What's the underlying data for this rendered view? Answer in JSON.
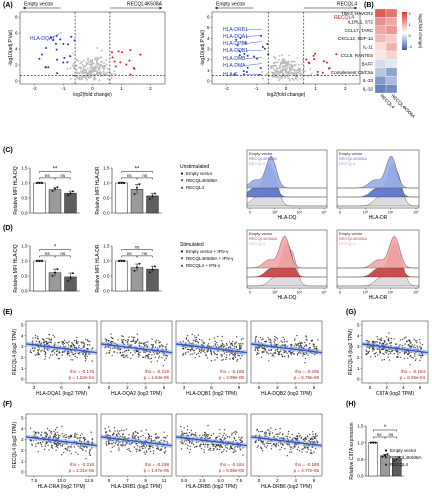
{
  "figure": {
    "panel_labels": [
      "(A)",
      "(B)",
      "(C)",
      "(D)",
      "(E)",
      "(F)",
      "(G)",
      "(H)"
    ]
  },
  "volcano": {
    "ylabel": "-log10(adj.P.Val)",
    "xlabel": "log2(fold change)",
    "plots": [
      {
        "left_label": "Empty vector",
        "right_label": "RECQL4K508A",
        "genes": [
          "HLA-DQA1"
        ],
        "xticks": [
          "-2",
          "-1",
          "0",
          "1",
          "2"
        ],
        "yticks": [
          "0",
          "2",
          "4",
          "6",
          "8"
        ]
      },
      {
        "left_label": "Empty vector",
        "right_label": "RECQL4",
        "genes": [
          "RECQL4",
          "HLA-DRB1",
          "HLA-DQA1",
          "HLA-DPB1",
          "HLA-DQB1",
          "HLA-DMB",
          "HLA-DMA",
          "HLA-E"
        ],
        "xticks": [
          "-2",
          "-1",
          "0",
          "1",
          "2"
        ],
        "yticks": [
          "0",
          "1",
          "2",
          "3",
          "4",
          "5",
          "6"
        ]
      }
    ],
    "colors": {
      "down": "#2038c8",
      "up": "#d42020",
      "ns": "#b8b8b8"
    }
  },
  "heatmap": {
    "rows": [
      "TIM-3, HAVCR2",
      "IL1RL1, ST2",
      "CCL17, TARC",
      "CXCL12, SDF-1α",
      "IL-11",
      "CCL5, RANTES",
      "BAFF",
      "Complement C5/C5a",
      "IL-33",
      "IL-32"
    ],
    "columns": [
      "RECQL4",
      "RECQL4K508A"
    ],
    "legend_title": "log2(fold change)",
    "legend_ticks": [
      "2",
      "1",
      "0",
      "-1"
    ],
    "colors": {
      "high": "#d63a2e",
      "mid": "#ffffff",
      "low": "#3a5ea8"
    }
  },
  "panel_c": {
    "title": "Unstimulated",
    "legend": [
      "Empty vector",
      "RECQL4K508A",
      "RECQL4"
    ],
    "ylabels": [
      "Relative MFI HLA-DQ",
      "Relative MFI HLA-DR"
    ],
    "significance": [
      "ns",
      "ns",
      "**",
      "ns",
      "ns",
      "**"
    ]
  },
  "panel_d": {
    "title": "Stimulated",
    "legend": [
      "Empty vector + IFN-γ",
      "RECQL4K508A + IFN-γ",
      "RECQL4 + IFN-γ"
    ],
    "ylabels": [
      "Relative MFI HLA-DQ",
      "Relative MFI HLA-DR"
    ],
    "significance": [
      "ns",
      "ns",
      "*",
      "ns",
      "ns",
      "ns"
    ]
  },
  "flow": {
    "labels_unstim": [
      "Empty vector",
      "RECQL4K508A",
      "RECQL4"
    ],
    "labels_stim": [
      "Empty vector",
      "RECQL4K508A",
      "RECQL4"
    ],
    "xlabels": [
      "HLA-DQ",
      "HLA-DR"
    ],
    "xticks": [
      "0",
      "10³",
      "10⁴",
      "10⁵"
    ]
  },
  "correlation": {
    "ylabel": "RECQL4 (log2 TPM)",
    "yticks": [
      "5",
      "4",
      "3",
      "2",
      "1",
      "0"
    ],
    "panels": [
      {
        "xlabel": "HLA-DQA1 (log2 TPM)",
        "rho": "rho = -0.176",
        "p": "p = 1.52e-04",
        "xticks": [
          "3",
          "6",
          "9"
        ]
      },
      {
        "xlabel": "HLA-DQA2 (log2 TPM)",
        "rho": "rho = -0.219",
        "p": "p = 1.64e-06",
        "xticks": [
          "0",
          "2",
          "4",
          "6"
        ]
      },
      {
        "xlabel": "HLA-DQB1 (log2 TPM)",
        "rho": "rho = -0.188",
        "p": "p = 3.99e-05",
        "xticks": [
          "3",
          "6",
          "9"
        ]
      },
      {
        "xlabel": "HLA-DQB2 (log2 TPM)",
        "rho": "rho = -0.206",
        "p": "p = 6.78e-06",
        "xticks": [
          "0",
          "2",
          "4",
          "6"
        ]
      },
      {
        "xlabel": "CIITA (log2 TPM)",
        "rho": "rho = -0.154",
        "p": "p = 8.06e-04",
        "xticks": [
          "0",
          "2",
          "4",
          "6"
        ]
      },
      {
        "xlabel": "HLA-DRA (log2 TPM)",
        "rho": "rho = -0.218",
        "p": "p = 2.31e-06",
        "xticks": [
          "7.5",
          "10.0",
          "12.5"
        ]
      },
      {
        "xlabel": "HLA-DRB1 (log2 TPM)",
        "rho": "rho = -0.198",
        "p": "p = 1.47e-05",
        "xticks": [
          "5",
          "7",
          "9",
          "11"
        ]
      },
      {
        "xlabel": "HLA-DRB5 (log2 TPM)",
        "rho": "rho = -0.184",
        "p": "p = 5.96e-05",
        "xticks": [
          "0.0",
          "2.5",
          "5.0",
          "7.5"
        ]
      },
      {
        "xlabel": "HLA-DRB6 (log2 TPM)",
        "rho": "rho = -0.188",
        "p": "p = 4.77e-05",
        "xticks": [
          "0",
          "2",
          "4",
          "6"
        ]
      }
    ]
  },
  "panel_h": {
    "ylabel": "Relative CIITA expression",
    "legend": [
      "Empty vector",
      "RECQL4K508A",
      "RECQL4"
    ],
    "significance": [
      "ns",
      "ns",
      "*"
    ]
  },
  "chart_data": [
    {
      "type": "bar",
      "id": "C-HLA-DQ",
      "categories": [
        "Empty vector",
        "RECQL4K508A",
        "RECQL4"
      ],
      "values": [
        1.0,
        0.78,
        0.66
      ],
      "errors": [
        0.03,
        0.06,
        0.07
      ],
      "points": [
        [
          1.0,
          1.0,
          1.0
        ],
        [
          0.72,
          0.8,
          0.85
        ],
        [
          0.6,
          0.67,
          0.73
        ]
      ],
      "ylabel": "Relative MFI HLA-DQ",
      "ylim": [
        0,
        1.5
      ],
      "yticks": [
        0.0,
        0.5,
        1.0,
        1.5
      ]
    },
    {
      "type": "bar",
      "id": "C-HLA-DR",
      "categories": [
        "Empty vector",
        "RECQL4K508A",
        "RECQL4"
      ],
      "values": [
        1.0,
        0.79,
        0.57
      ],
      "errors": [
        0.03,
        0.16,
        0.08
      ],
      "points": [
        [
          1.0,
          1.0,
          1.0
        ],
        [
          0.62,
          0.83,
          0.95
        ],
        [
          0.48,
          0.57,
          0.66
        ]
      ],
      "ylabel": "Relative MFI HLA-DR",
      "ylim": [
        0,
        1.5
      ],
      "yticks": [
        0.0,
        0.5,
        1.0,
        1.5
      ]
    },
    {
      "type": "bar",
      "id": "D-HLA-DQ",
      "categories": [
        "Empty vector + IFN-γ",
        "RECQL4K508A + IFN-γ",
        "RECQL4 + IFN-γ"
      ],
      "values": [
        1.0,
        0.61,
        0.47
      ],
      "errors": [
        0.03,
        0.12,
        0.13
      ],
      "points": [
        [
          1.0,
          1.0,
          1.0
        ],
        [
          0.5,
          0.6,
          0.72
        ],
        [
          0.35,
          0.45,
          0.6
        ]
      ],
      "ylabel": "Relative MFI HLA-DQ",
      "ylim": [
        0,
        1.5
      ],
      "yticks": [
        0.0,
        0.5,
        1.0,
        1.5
      ]
    },
    {
      "type": "bar",
      "id": "D-HLA-DR",
      "categories": [
        "Empty vector + IFN-γ",
        "RECQL4K508A + IFN-γ",
        "RECQL4 + IFN-γ"
      ],
      "values": [
        1.0,
        0.78,
        0.73
      ],
      "errors": [
        0.03,
        0.12,
        0.1
      ],
      "points": [
        [
          1.0,
          1.0,
          1.0
        ],
        [
          0.66,
          0.78,
          0.9
        ],
        [
          0.63,
          0.73,
          0.83
        ]
      ],
      "ylabel": "Relative MFI HLA-DR",
      "ylim": [
        0,
        1.5
      ],
      "yticks": [
        0.0,
        0.5,
        1.0,
        1.5
      ]
    },
    {
      "type": "bar",
      "id": "H-CIITA",
      "categories": [
        "Empty vector",
        "RECQL4K508A",
        "RECQL4"
      ],
      "values": [
        1.0,
        0.61,
        0.52
      ],
      "errors": [
        0.02,
        0.04,
        0.05
      ],
      "points": [
        [
          1.0,
          1.0,
          1.0
        ],
        [
          0.57,
          0.61,
          0.65
        ],
        [
          0.47,
          0.52,
          0.57
        ]
      ],
      "ylabel": "Relative CIITA expression",
      "ylim": [
        0,
        1.5
      ],
      "yticks": [
        0.0,
        0.5,
        1.0,
        1.5
      ]
    },
    {
      "type": "heatmap",
      "id": "B",
      "rows": [
        "TIM-3, HAVCR2",
        "IL1RL1, ST2",
        "CCL17, TARC",
        "CXCL12, SDF-1α",
        "IL-11",
        "CCL5, RANTES",
        "BAFF",
        "Complement C5/C5a",
        "IL-33",
        "IL-32"
      ],
      "columns": [
        "RECQL4",
        "RECQL4K508A"
      ],
      "values": [
        [
          1.9,
          1.6
        ],
        [
          1.3,
          1.0
        ],
        [
          1.0,
          1.2
        ],
        [
          0.8,
          0.6
        ],
        [
          0.4,
          0.9
        ],
        [
          0.3,
          0.5
        ],
        [
          -0.3,
          -0.2
        ],
        [
          -0.5,
          -0.8
        ],
        [
          -0.9,
          -0.6
        ],
        [
          -1.1,
          -1.0
        ]
      ],
      "scale": [
        -1.5,
        2.5
      ]
    }
  ]
}
